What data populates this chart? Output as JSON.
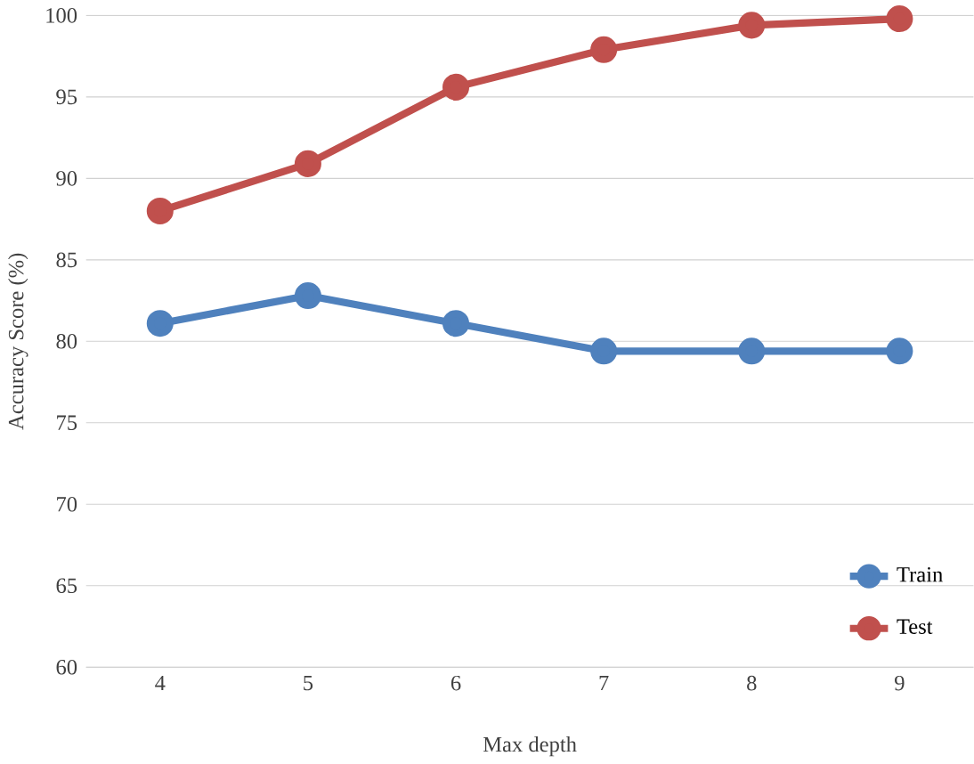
{
  "chart_data": {
    "type": "line",
    "xlabel": "Max depth",
    "ylabel": "Accuracy Score (%)",
    "categories": [
      "4",
      "5",
      "6",
      "7",
      "8",
      "9"
    ],
    "series": [
      {
        "name": "Train",
        "color": "#4f81bd",
        "values": [
          81.1,
          82.8,
          81.1,
          79.4,
          79.4,
          79.4
        ]
      },
      {
        "name": "Test",
        "color": "#c0504d",
        "values": [
          88.0,
          90.9,
          95.6,
          97.9,
          99.4,
          99.8
        ]
      }
    ],
    "ylim": [
      60,
      100
    ],
    "yticks": [
      60,
      65,
      70,
      75,
      80,
      85,
      90,
      95,
      100
    ],
    "grid": "y",
    "legend": "bottom right",
    "marker": "circle",
    "line_style": "solid"
  }
}
